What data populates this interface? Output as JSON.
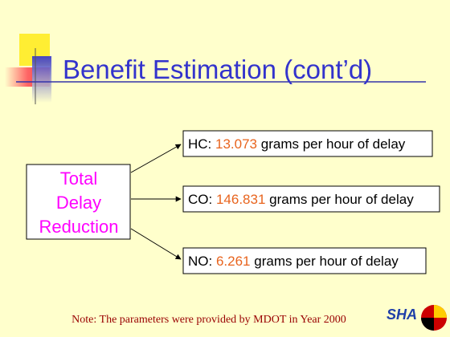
{
  "header": {
    "title": "Benefit Estimation (cont’d)"
  },
  "source_box": {
    "lines": [
      "Total",
      "Delay",
      "Reduction"
    ]
  },
  "items": [
    {
      "label": "HC:",
      "value": "13.073",
      "unit": "grams per hour of delay"
    },
    {
      "label": "CO:",
      "value": "146.831",
      "unit": "grams per hour of delay"
    },
    {
      "label": "NO:",
      "value": "6.261",
      "unit": "grams per hour of delay"
    }
  ],
  "note": "Note:  The parameters were provided by MDOT in Year 2000",
  "logo": "SHA"
}
